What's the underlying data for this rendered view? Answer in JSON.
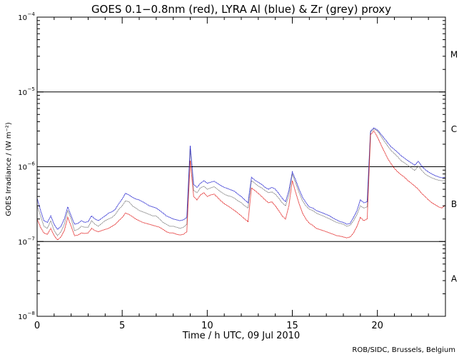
{
  "chart_data": {
    "type": "line",
    "title": "GOES 0.1−0.8nm (red), LYRA Al (blue) & Zr (grey) proxy",
    "xlabel": "Time / h UTC, 09 Jul 2010",
    "ylabel": "GOES Irradiance / (W m⁻²)",
    "credit": "ROB/SIDC, Brussels, Belgium",
    "xlim": [
      0,
      24
    ],
    "ylim": [
      1e-08,
      0.0001
    ],
    "yscale": "log",
    "x_ticks": [
      0,
      5,
      10,
      15,
      20
    ],
    "x_tick_labels": [
      "0",
      "5",
      "10",
      "15",
      "20"
    ],
    "y_ticks": [
      1e-08,
      1e-07,
      1e-06,
      1e-05,
      0.0001
    ],
    "y_tick_bases": [
      "10",
      "10",
      "10",
      "10",
      "10"
    ],
    "y_tick_exps": [
      "−8",
      "−7",
      "−6",
      "−5",
      "−4"
    ],
    "class_lines": [
      1e-07,
      1e-06,
      1e-05
    ],
    "flare_classes": [
      {
        "label": "A",
        "value": 3.16e-08
      },
      {
        "label": "B",
        "value": 3.16e-07
      },
      {
        "label": "C",
        "value": 3.16e-06
      },
      {
        "label": "M",
        "value": 3.16e-05
      }
    ],
    "series": [
      {
        "name": "LYRA Zr (grey) proxy",
        "color": "#707070",
        "x": [
          0.0,
          0.2,
          0.4,
          0.6,
          0.8,
          1.0,
          1.2,
          1.4,
          1.6,
          1.8,
          2.0,
          2.2,
          2.4,
          2.6,
          2.8,
          3.0,
          3.2,
          3.4,
          3.6,
          3.8,
          4.0,
          4.2,
          4.4,
          4.6,
          4.8,
          5.0,
          5.2,
          5.4,
          5.6,
          5.8,
          6.0,
          6.2,
          6.4,
          6.6,
          6.8,
          7.0,
          7.2,
          7.4,
          7.6,
          7.8,
          8.0,
          8.2,
          8.4,
          8.6,
          8.8,
          9.0,
          9.2,
          9.4,
          9.6,
          9.8,
          10.0,
          10.2,
          10.4,
          10.6,
          10.8,
          11.0,
          11.2,
          11.4,
          11.6,
          11.8,
          12.0,
          12.2,
          12.4,
          12.6,
          12.8,
          13.0,
          13.2,
          13.4,
          13.6,
          13.8,
          14.0,
          14.2,
          14.4,
          14.6,
          14.8,
          15.0,
          15.2,
          15.4,
          15.6,
          15.8,
          16.0,
          16.2,
          16.4,
          16.6,
          16.8,
          17.0,
          17.2,
          17.4,
          17.6,
          17.8,
          18.0,
          18.2,
          18.4,
          18.6,
          18.8,
          19.0,
          19.2,
          19.4,
          19.6,
          19.8,
          20.0,
          20.2,
          20.4,
          20.6,
          20.8,
          21.0,
          21.2,
          21.4,
          21.6,
          21.8,
          22.0,
          22.2,
          22.4,
          22.6,
          22.8,
          23.0,
          23.2,
          23.4,
          23.6,
          23.8,
          24.0
        ],
        "values": [
          3e-07,
          2.2e-07,
          1.6e-07,
          1.5e-07,
          1.9e-07,
          1.4e-07,
          1.2e-07,
          1.35e-07,
          1.7e-07,
          2.6e-07,
          2e-07,
          1.4e-07,
          1.45e-07,
          1.6e-07,
          1.55e-07,
          1.55e-07,
          1.9e-07,
          1.7e-07,
          1.6e-07,
          1.75e-07,
          1.9e-07,
          2e-07,
          2.1e-07,
          2.3e-07,
          2.7e-07,
          3e-07,
          3.5e-07,
          3.4e-07,
          3e-07,
          2.8e-07,
          2.6e-07,
          2.5e-07,
          2.4e-07,
          2.3e-07,
          2.2e-07,
          2.2e-07,
          2e-07,
          1.8e-07,
          1.7e-07,
          1.6e-07,
          1.6e-07,
          1.55e-07,
          1.5e-07,
          1.55e-07,
          1.7e-07,
          1.75e-06,
          4.8e-07,
          4.5e-07,
          5.2e-07,
          5.5e-07,
          5e-07,
          5.2e-07,
          5.4e-07,
          5e-07,
          4.6e-07,
          4.3e-07,
          4.1e-07,
          4e-07,
          3.8e-07,
          3.5e-07,
          3.3e-07,
          3e-07,
          2.8e-07,
          6.5e-07,
          6e-07,
          5.5e-07,
          5.2e-07,
          4.8e-07,
          4.5e-07,
          4.6e-07,
          4.3e-07,
          3.8e-07,
          3.3e-07,
          3e-07,
          4.2e-07,
          8e-07,
          6e-07,
          4.5e-07,
          3.5e-07,
          3e-07,
          2.7e-07,
          2.6e-07,
          2.4e-07,
          2.3e-07,
          2.2e-07,
          2.1e-07,
          2e-07,
          1.9e-07,
          1.8e-07,
          1.75e-07,
          1.7e-07,
          1.6e-07,
          1.65e-07,
          1.9e-07,
          2.3e-07,
          3e-07,
          2.8e-07,
          2.9e-07,
          2.9e-06,
          3.2e-06,
          3e-06,
          2.6e-06,
          2.2e-06,
          1.9e-06,
          1.65e-06,
          1.5e-06,
          1.35e-06,
          1.2e-06,
          1.12e-06,
          1.04e-06,
          9.6e-07,
          8.9e-07,
          1.02e-06,
          9e-07,
          8e-07,
          7.5e-07,
          7.1e-07,
          6.8e-07,
          6.6e-07,
          6.5e-07,
          6.5e-07
        ]
      },
      {
        "name": "LYRA Al (blue) proxy",
        "color": "#0000c8",
        "x": [
          0.0,
          0.2,
          0.4,
          0.6,
          0.8,
          1.0,
          1.2,
          1.4,
          1.6,
          1.8,
          2.0,
          2.2,
          2.4,
          2.6,
          2.8,
          3.0,
          3.2,
          3.4,
          3.6,
          3.8,
          4.0,
          4.2,
          4.4,
          4.6,
          4.8,
          5.0,
          5.2,
          5.4,
          5.6,
          5.8,
          6.0,
          6.2,
          6.4,
          6.6,
          6.8,
          7.0,
          7.2,
          7.4,
          7.6,
          7.8,
          8.0,
          8.2,
          8.4,
          8.6,
          8.8,
          9.0,
          9.2,
          9.4,
          9.6,
          9.8,
          10.0,
          10.2,
          10.4,
          10.6,
          10.8,
          11.0,
          11.2,
          11.4,
          11.6,
          11.8,
          12.0,
          12.2,
          12.4,
          12.6,
          12.8,
          13.0,
          13.2,
          13.4,
          13.6,
          13.8,
          14.0,
          14.2,
          14.4,
          14.6,
          14.8,
          15.0,
          15.2,
          15.4,
          15.6,
          15.8,
          16.0,
          16.2,
          16.4,
          16.6,
          16.8,
          17.0,
          17.2,
          17.4,
          17.6,
          17.8,
          18.0,
          18.2,
          18.4,
          18.6,
          18.8,
          19.0,
          19.2,
          19.4,
          19.6,
          19.8,
          20.0,
          20.2,
          20.4,
          20.6,
          20.8,
          21.0,
          21.2,
          21.4,
          21.6,
          21.8,
          22.0,
          22.2,
          22.4,
          22.6,
          22.8,
          23.0,
          23.2,
          23.4,
          23.6,
          23.8,
          24.0
        ],
        "values": [
          3.8e-07,
          2.6e-07,
          1.9e-07,
          1.8e-07,
          2.2e-07,
          1.7e-07,
          1.45e-07,
          1.6e-07,
          2e-07,
          2.9e-07,
          2.2e-07,
          1.7e-07,
          1.75e-07,
          1.9e-07,
          1.8e-07,
          1.85e-07,
          2.2e-07,
          2e-07,
          1.9e-07,
          2.05e-07,
          2.2e-07,
          2.4e-07,
          2.5e-07,
          2.7e-07,
          3.2e-07,
          3.7e-07,
          4.4e-07,
          4.2e-07,
          3.9e-07,
          3.7e-07,
          3.6e-07,
          3.4e-07,
          3.2e-07,
          3e-07,
          2.9e-07,
          2.8e-07,
          2.6e-07,
          2.4e-07,
          2.2e-07,
          2.1e-07,
          2e-07,
          1.95e-07,
          1.9e-07,
          1.95e-07,
          2.1e-07,
          1.9e-06,
          5.8e-07,
          5.3e-07,
          6e-07,
          6.5e-07,
          6e-07,
          6.2e-07,
          6.4e-07,
          6e-07,
          5.6e-07,
          5.3e-07,
          5.1e-07,
          4.9e-07,
          4.7e-07,
          4.3e-07,
          4e-07,
          3.6e-07,
          3.3e-07,
          7.2e-07,
          6.6e-07,
          6.2e-07,
          5.8e-07,
          5.3e-07,
          5e-07,
          5.3e-07,
          5e-07,
          4.4e-07,
          3.8e-07,
          3.4e-07,
          4.8e-07,
          8.5e-07,
          6.6e-07,
          5e-07,
          3.9e-07,
          3.3e-07,
          2.9e-07,
          2.8e-07,
          2.6e-07,
          2.5e-07,
          2.4e-07,
          2.3e-07,
          2.2e-07,
          2.05e-07,
          1.95e-07,
          1.85e-07,
          1.8e-07,
          1.7e-07,
          1.75e-07,
          2.1e-07,
          2.6e-07,
          3.6e-07,
          3.3e-07,
          3.4e-07,
          3e-06,
          3.3e-06,
          3.1e-06,
          2.75e-06,
          2.4e-06,
          2.1e-06,
          1.85e-06,
          1.7e-06,
          1.55e-06,
          1.4e-06,
          1.3e-06,
          1.2e-06,
          1.12e-06,
          1.05e-06,
          1.18e-06,
          1.03e-06,
          9.2e-07,
          8.5e-07,
          8e-07,
          7.6e-07,
          7.3e-07,
          7.1e-07,
          7.2e-07
        ]
      },
      {
        "name": "GOES 0.1−0.8nm (red)",
        "color": "#dd0000",
        "x": [
          0.0,
          0.2,
          0.4,
          0.6,
          0.8,
          1.0,
          1.2,
          1.4,
          1.6,
          1.8,
          2.0,
          2.2,
          2.4,
          2.6,
          2.8,
          3.0,
          3.2,
          3.4,
          3.6,
          3.8,
          4.0,
          4.2,
          4.4,
          4.6,
          4.8,
          5.0,
          5.2,
          5.4,
          5.6,
          5.8,
          6.0,
          6.2,
          6.4,
          6.6,
          6.8,
          7.0,
          7.2,
          7.4,
          7.6,
          7.8,
          8.0,
          8.2,
          8.4,
          8.6,
          8.8,
          9.0,
          9.2,
          9.4,
          9.6,
          9.8,
          10.0,
          10.2,
          10.4,
          10.6,
          10.8,
          11.0,
          11.2,
          11.4,
          11.6,
          11.8,
          12.0,
          12.2,
          12.4,
          12.6,
          12.8,
          13.0,
          13.2,
          13.4,
          13.6,
          13.8,
          14.0,
          14.2,
          14.4,
          14.6,
          14.8,
          15.0,
          15.2,
          15.4,
          15.6,
          15.8,
          16.0,
          16.2,
          16.4,
          16.6,
          16.8,
          17.0,
          17.2,
          17.4,
          17.6,
          17.8,
          18.0,
          18.2,
          18.4,
          18.6,
          18.8,
          19.0,
          19.2,
          19.4,
          19.6,
          19.8,
          20.0,
          20.2,
          20.4,
          20.6,
          20.8,
          21.0,
          21.2,
          21.4,
          21.6,
          21.8,
          22.0,
          22.2,
          22.4,
          22.6,
          22.8,
          23.0,
          23.2,
          23.4,
          23.6,
          23.8,
          24.0
        ],
        "values": [
          2e-07,
          1.55e-07,
          1.3e-07,
          1.25e-07,
          1.5e-07,
          1.2e-07,
          1.05e-07,
          1.15e-07,
          1.4e-07,
          2.1e-07,
          1.6e-07,
          1.2e-07,
          1.22e-07,
          1.3e-07,
          1.28e-07,
          1.3e-07,
          1.5e-07,
          1.4e-07,
          1.35e-07,
          1.4e-07,
          1.45e-07,
          1.5e-07,
          1.6e-07,
          1.7e-07,
          1.9e-07,
          2.1e-07,
          2.4e-07,
          2.3e-07,
          2.15e-07,
          2e-07,
          1.9e-07,
          1.8e-07,
          1.75e-07,
          1.7e-07,
          1.65e-07,
          1.6e-07,
          1.55e-07,
          1.45e-07,
          1.35e-07,
          1.3e-07,
          1.3e-07,
          1.25e-07,
          1.22e-07,
          1.25e-07,
          1.35e-07,
          1.2e-06,
          4e-07,
          3.6e-07,
          4.2e-07,
          4.5e-07,
          4e-07,
          4.2e-07,
          4.3e-07,
          3.9e-07,
          3.5e-07,
          3.2e-07,
          3e-07,
          2.8e-07,
          2.6e-07,
          2.4e-07,
          2.2e-07,
          2e-07,
          1.85e-07,
          5.2e-07,
          4.8e-07,
          4.4e-07,
          4e-07,
          3.6e-07,
          3.3e-07,
          3.4e-07,
          3e-07,
          2.6e-07,
          2.2e-07,
          2e-07,
          3e-07,
          6.5e-07,
          4.5e-07,
          3.2e-07,
          2.4e-07,
          2e-07,
          1.75e-07,
          1.65e-07,
          1.5e-07,
          1.45e-07,
          1.4e-07,
          1.35e-07,
          1.3e-07,
          1.25e-07,
          1.2e-07,
          1.18e-07,
          1.15e-07,
          1.12e-07,
          1.15e-07,
          1.3e-07,
          1.6e-07,
          2.1e-07,
          1.9e-07,
          2e-07,
          2.7e-06,
          3e-06,
          2.5e-06,
          2e-06,
          1.6e-06,
          1.3e-06,
          1.1e-06,
          9.5e-07,
          8.5e-07,
          7.8e-07,
          7.2e-07,
          6.5e-07,
          6e-07,
          5.5e-07,
          5e-07,
          4.4e-07,
          4e-07,
          3.6e-07,
          3.3e-07,
          3.1e-07,
          2.9e-07,
          2.8e-07,
          3.1e-07
        ]
      }
    ]
  }
}
